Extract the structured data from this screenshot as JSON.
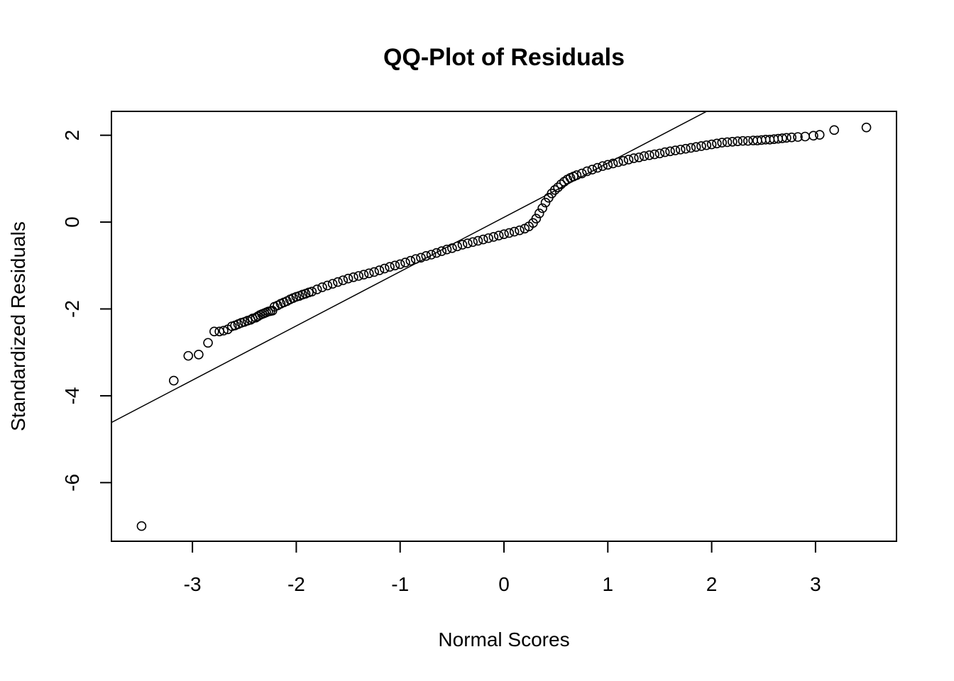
{
  "chart_data": {
    "type": "scatter",
    "title": "QQ-Plot of Residuals",
    "xlabel": "Normal Scores",
    "ylabel": "Standardized Residuals",
    "xlim": [
      -3.78,
      3.78
    ],
    "ylim": [
      -7.35,
      2.55
    ],
    "xticks": [
      -3,
      -2,
      -1,
      0,
      1,
      2,
      3
    ],
    "yticks": [
      -6,
      -4,
      -2,
      0,
      2
    ],
    "grid": false,
    "legend": "none",
    "point_style": "open-circle",
    "reference_line": {
      "intercept": 0.11,
      "slope": 1.25
    },
    "series": [
      {
        "x": [
          -3.49,
          -3.18,
          -3.04,
          -2.94,
          -2.85,
          -2.79,
          -2.74,
          -2.7,
          -2.66,
          -2.62,
          -2.59,
          -2.56,
          -2.53,
          -2.5,
          -2.47,
          -2.44,
          -2.42,
          -2.39,
          -2.37,
          -2.35,
          -2.33,
          -2.31,
          -2.29,
          -2.27,
          -2.25,
          -2.23,
          -2.21,
          -2.18,
          -2.15,
          -2.12,
          -2.09,
          -2.06,
          -2.03,
          -2.0,
          -1.97,
          -1.94,
          -1.91,
          -1.88,
          -1.85,
          -1.8,
          -1.75,
          -1.7,
          -1.65,
          -1.6,
          -1.55,
          -1.5,
          -1.45,
          -1.4,
          -1.35,
          -1.3,
          -1.25,
          -1.2,
          -1.15,
          -1.1,
          -1.05,
          -1.0,
          -0.95,
          -0.9,
          -0.85,
          -0.8,
          -0.75,
          -0.7,
          -0.65,
          -0.6,
          -0.55,
          -0.5,
          -0.45,
          -0.4,
          -0.35,
          -0.3,
          -0.25,
          -0.2,
          -0.15,
          -0.1,
          -0.05,
          0.0,
          0.05,
          0.1,
          0.15,
          0.2,
          0.24,
          0.28,
          0.31,
          0.34,
          0.37,
          0.4,
          0.43,
          0.46,
          0.49,
          0.52,
          0.55,
          0.58,
          0.61,
          0.64,
          0.67,
          0.7,
          0.75,
          0.8,
          0.85,
          0.9,
          0.95,
          1.0,
          1.05,
          1.1,
          1.15,
          1.2,
          1.25,
          1.3,
          1.35,
          1.4,
          1.45,
          1.5,
          1.55,
          1.6,
          1.65,
          1.7,
          1.75,
          1.8,
          1.85,
          1.9,
          1.95,
          2.0,
          2.05,
          2.1,
          2.15,
          2.2,
          2.25,
          2.3,
          2.35,
          2.4,
          2.44,
          2.48,
          2.52,
          2.56,
          2.6,
          2.64,
          2.68,
          2.72,
          2.77,
          2.83,
          2.9,
          2.98,
          3.04,
          3.18,
          3.49
        ],
        "y": [
          -7.0,
          -3.65,
          -3.08,
          -3.05,
          -2.78,
          -2.52,
          -2.52,
          -2.5,
          -2.47,
          -2.4,
          -2.38,
          -2.35,
          -2.32,
          -2.3,
          -2.27,
          -2.25,
          -2.22,
          -2.2,
          -2.17,
          -2.14,
          -2.12,
          -2.1,
          -2.08,
          -2.06,
          -2.05,
          -2.04,
          -1.95,
          -1.92,
          -1.88,
          -1.85,
          -1.82,
          -1.78,
          -1.75,
          -1.72,
          -1.7,
          -1.67,
          -1.65,
          -1.62,
          -1.6,
          -1.55,
          -1.5,
          -1.46,
          -1.42,
          -1.38,
          -1.34,
          -1.3,
          -1.27,
          -1.24,
          -1.21,
          -1.18,
          -1.15,
          -1.11,
          -1.07,
          -1.03,
          -1.0,
          -0.97,
          -0.93,
          -0.89,
          -0.85,
          -0.82,
          -0.78,
          -0.75,
          -0.71,
          -0.67,
          -0.63,
          -0.6,
          -0.56,
          -0.52,
          -0.49,
          -0.46,
          -0.43,
          -0.4,
          -0.37,
          -0.34,
          -0.31,
          -0.28,
          -0.25,
          -0.22,
          -0.19,
          -0.15,
          -0.1,
          -0.02,
          0.08,
          0.2,
          0.32,
          0.45,
          0.56,
          0.66,
          0.74,
          0.8,
          0.87,
          0.93,
          0.98,
          1.02,
          1.05,
          1.08,
          1.12,
          1.17,
          1.21,
          1.25,
          1.29,
          1.32,
          1.35,
          1.38,
          1.41,
          1.44,
          1.47,
          1.49,
          1.52,
          1.54,
          1.56,
          1.58,
          1.61,
          1.63,
          1.65,
          1.67,
          1.69,
          1.71,
          1.73,
          1.75,
          1.77,
          1.79,
          1.81,
          1.83,
          1.84,
          1.85,
          1.86,
          1.87,
          1.87,
          1.88,
          1.88,
          1.89,
          1.9,
          1.9,
          1.91,
          1.92,
          1.93,
          1.94,
          1.95,
          1.96,
          1.97,
          1.99,
          2.01,
          2.12,
          2.18
        ]
      }
    ]
  }
}
